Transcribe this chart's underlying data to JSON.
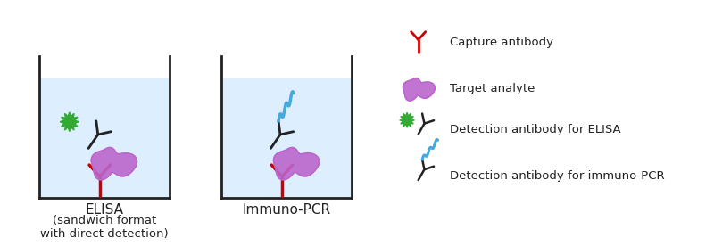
{
  "bg_color": "#ffffff",
  "liquid_color": "#ddeeff",
  "container_line_color": "#222222",
  "capture_ab_color": "#cc0000",
  "analyte_color": "#bb66cc",
  "detect_ab_color": "#222222",
  "green_blob_color": "#33aa33",
  "cyan_dna_color": "#44aadd",
  "elisa_label": "ELISA",
  "elisa_sublabel": "(sandwich format\nwith direct detection)",
  "ipcr_label": "Immuno-PCR",
  "legend_items": [
    {
      "label": "Capture antibody"
    },
    {
      "label": "Target analyte"
    },
    {
      "label": "Detection antibody for ELISA"
    },
    {
      "label": "Detection antibody for immuno-PCR"
    }
  ],
  "font_size_label": 10,
  "font_size_legend": 9,
  "xlim": [
    0,
    8
  ],
  "ylim": [
    0,
    2.76
  ]
}
